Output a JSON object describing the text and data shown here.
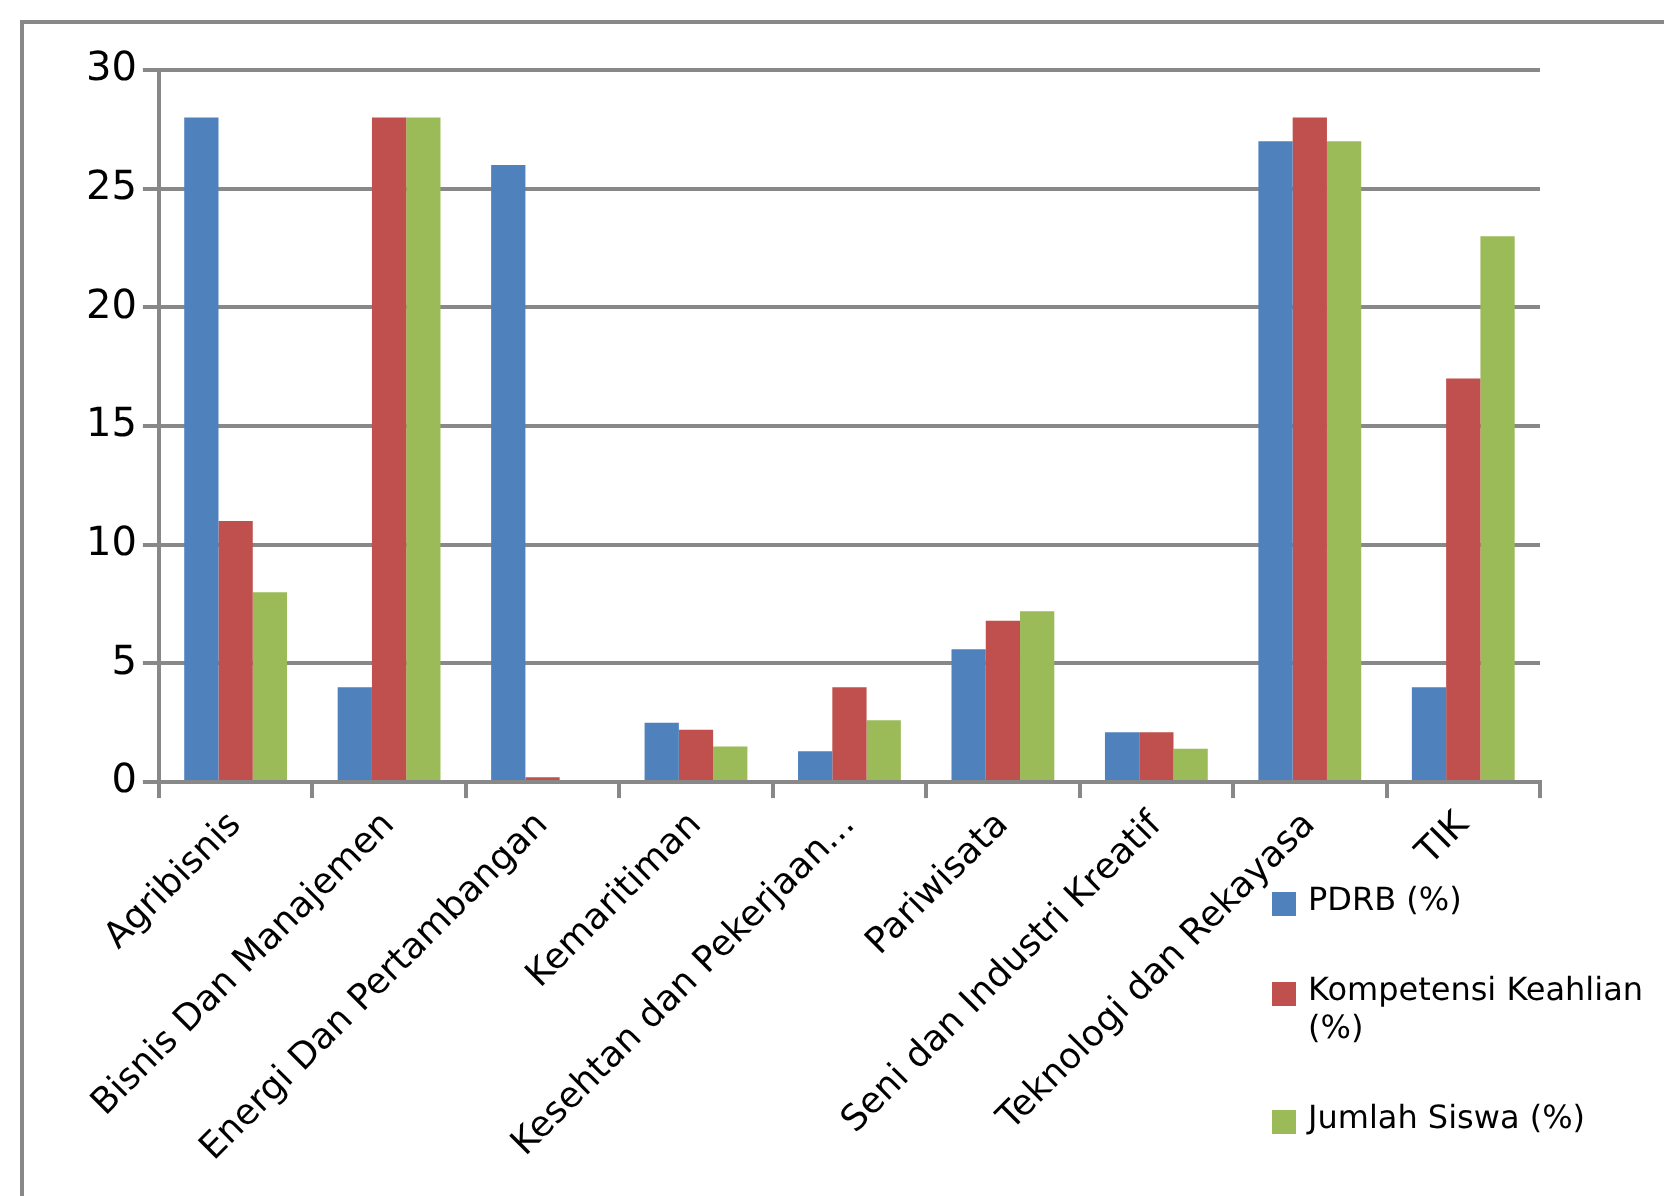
{
  "chart_data": {
    "type": "bar",
    "categories": [
      "Agribisnis",
      "Bisnis Dan Manajemen",
      "Energi Dan Pertambangan",
      "Kemaritiman",
      "Kesehtan dan Pekerjaan...",
      "Pariwisata",
      "Seni dan Industri Kreatif",
      "Teknologi dan Rekayasa",
      "TIK"
    ],
    "series": [
      {
        "name": "PDRB (%)",
        "color": "#4f81bd",
        "values": [
          28,
          4,
          26,
          2.5,
          1.3,
          5.6,
          2.1,
          27,
          4
        ]
      },
      {
        "name": "Kompetensi Keahlian (%)",
        "color": "#c0504d",
        "values": [
          11,
          28,
          0.2,
          2.2,
          4,
          6.8,
          2.1,
          28,
          17
        ]
      },
      {
        "name": "Jumlah Siswa (%)",
        "color": "#9bbb59",
        "values": [
          8,
          28,
          0,
          1.5,
          2.6,
          7.2,
          1.4,
          27,
          23
        ]
      }
    ],
    "ylim": [
      0,
      30
    ],
    "yticks": [
      0,
      5,
      10,
      15,
      20,
      25,
      30
    ],
    "grid": "y",
    "legend": "bottom right"
  }
}
